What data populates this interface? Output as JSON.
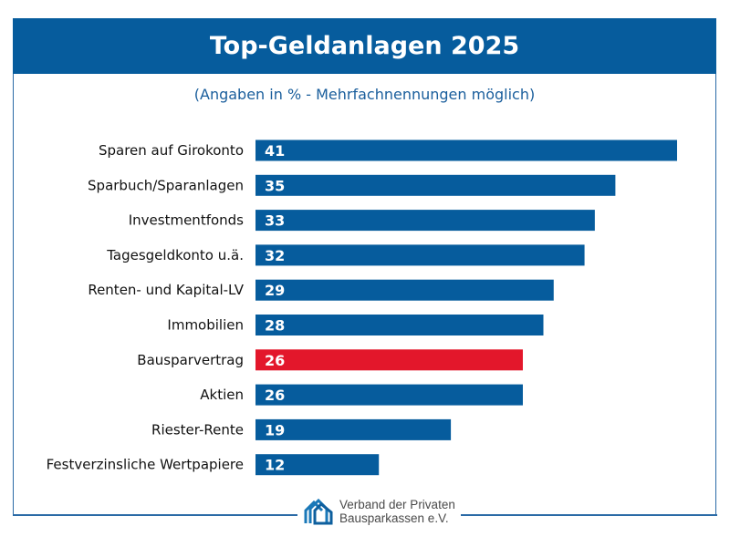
{
  "chart_data": {
    "type": "bar",
    "orientation": "horizontal",
    "title": "Top-Geldanlagen 2025",
    "subtitle": "(Angaben in % - Mehrfachnennungen möglich)",
    "categories": [
      "Sparen auf Girokonto",
      "Sparbuch/Sparanlagen",
      "Investmentfonds",
      "Tagesgeldkonto u.ä.",
      "Renten- und Kapital-LV",
      "Immobilien",
      "Bausparvertrag",
      "Aktien",
      "Riester-Rente",
      "Festverzinsliche Wertpapiere"
    ],
    "values": [
      41,
      35,
      33,
      32,
      29,
      28,
      26,
      26,
      19,
      12
    ],
    "highlight_index": 6,
    "colors": {
      "bar": "#065c9d",
      "highlight": "#e3172b",
      "header": "#065c9d"
    },
    "grid": false,
    "legend": "none"
  },
  "footer": {
    "logo_line1": "Verband der Privaten",
    "logo_line2": "Bausparkassen e.V.",
    "logo_icon": "houses-icon"
  }
}
